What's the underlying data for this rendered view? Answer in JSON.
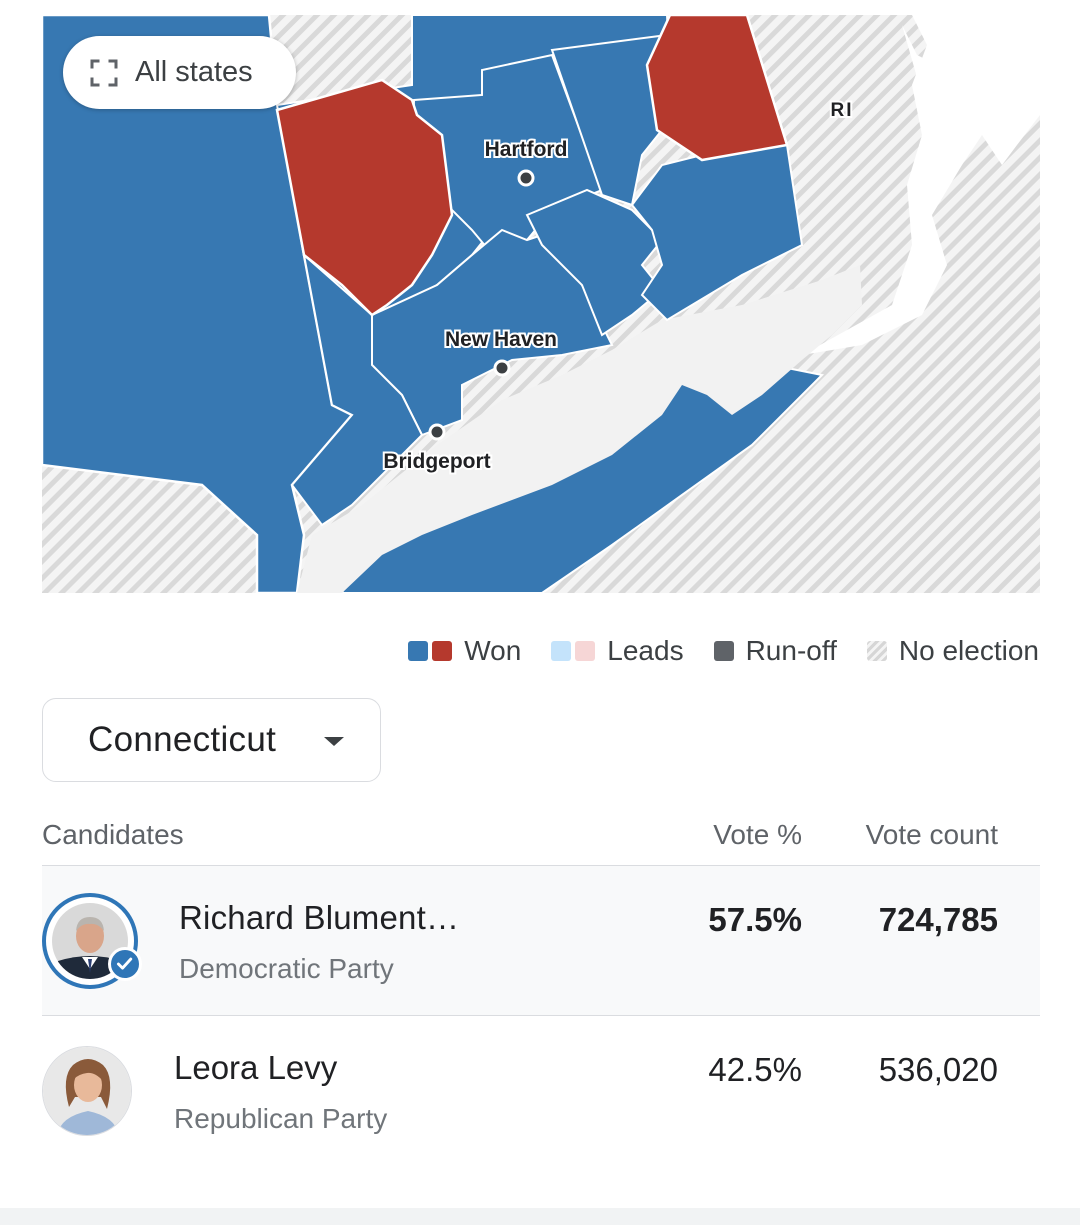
{
  "map": {
    "all_states_label": "All states",
    "state_abbrev_label": "RI",
    "cities": [
      {
        "name": "Hartford"
      },
      {
        "name": "New Haven"
      },
      {
        "name": "Bridgeport"
      }
    ],
    "colors": {
      "democrat": "#3778b2",
      "republican": "#b5392d",
      "dem_leads": "#c4e3fb",
      "rep_leads": "#f6d6d6",
      "runoff": "#5f6368",
      "water": "#f2f2f2"
    }
  },
  "legend": {
    "won": "Won",
    "leads": "Leads",
    "runoff": "Run-off",
    "no_election": "No election"
  },
  "state_selector": {
    "value": "Connecticut"
  },
  "results": {
    "headers": {
      "candidates": "Candidates",
      "vote_pct": "Vote %",
      "vote_count": "Vote count"
    },
    "candidates": [
      {
        "name": "Richard Blument…",
        "party": "Democratic Party",
        "vote_pct": "57.5%",
        "vote_count": "724,785",
        "winner": true
      },
      {
        "name": "Leora Levy",
        "party": "Republican Party",
        "vote_pct": "42.5%",
        "vote_count": "536,020",
        "winner": false
      }
    ]
  }
}
